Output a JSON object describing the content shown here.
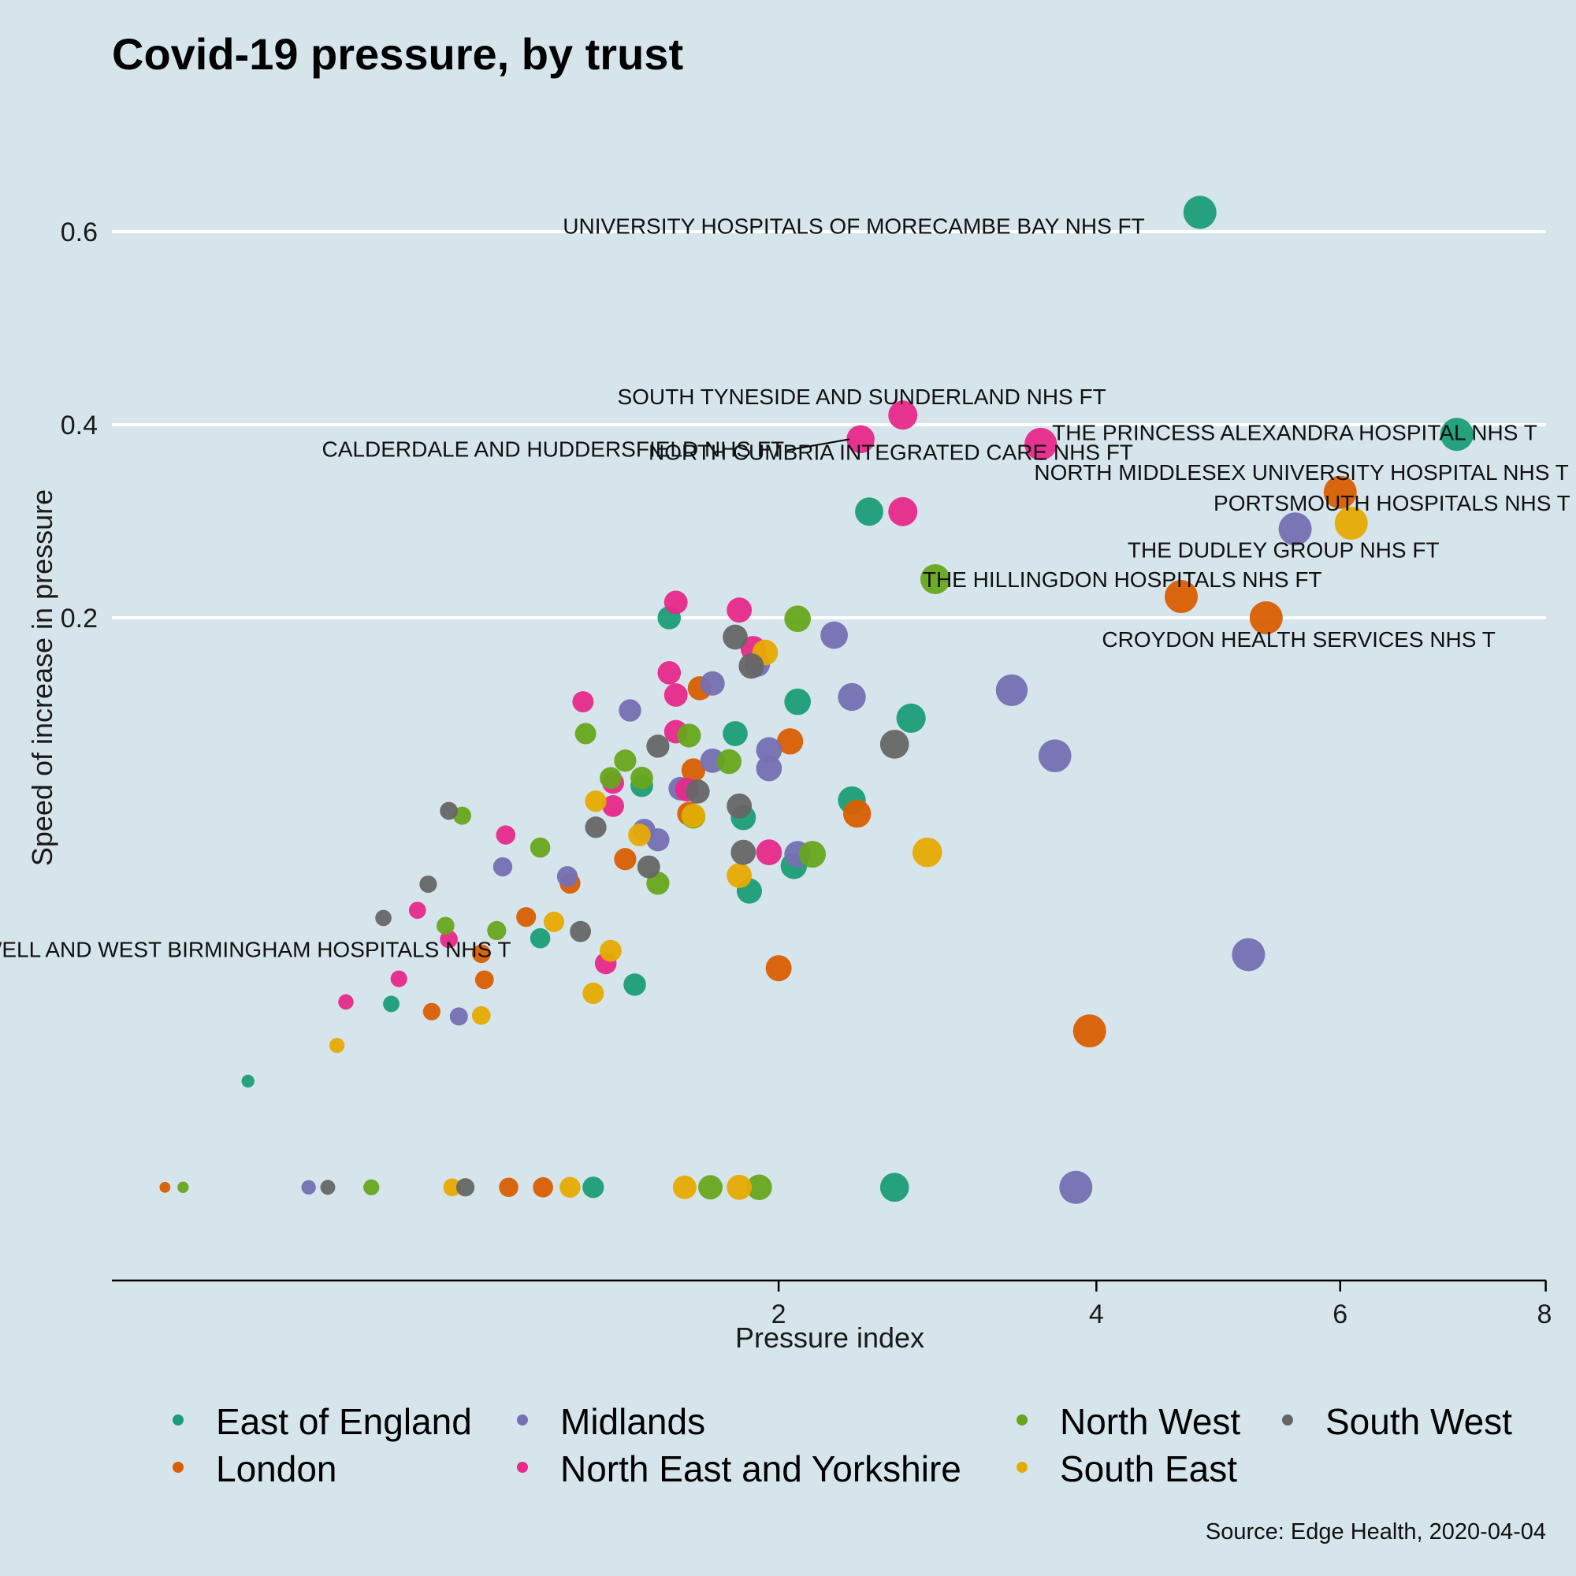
{
  "colors": {
    "background": "#d6e5ec",
    "gridline": "#ffffff",
    "axis": "#000000",
    "East of England": "#1b9e77",
    "London": "#d95f02",
    "Midlands": "#7570b3",
    "North East and Yorkshire": "#e7298a",
    "North West": "#66a61e",
    "South East": "#e6ab02",
    "South West": "#666666"
  },
  "chart_data": {
    "type": "scatter",
    "title": "Covid-19 pressure, by trust",
    "xlabel": "Pressure index",
    "ylabel": "Speed of increase in pressure",
    "caption": "Source: Edge Health, 2020-04-04",
    "x_scale": "sqrt",
    "xlim": [
      0,
      8
    ],
    "ylim": [
      -0.45,
      0.68
    ],
    "x_ticks": [
      2,
      4,
      6,
      8
    ],
    "y_ticks": [
      0.2,
      0.4,
      0.6
    ],
    "grid": "horizontal major lines only",
    "legend_position": "bottom",
    "legend": [
      "East of England",
      "Midlands",
      "North West",
      "South West",
      "London",
      "North East and Yorkshire",
      "South East"
    ],
    "series": [
      {
        "name": "East of England",
        "points": [
          {
            "x": 4.8,
            "y": 0.62,
            "label": "UNIVERSITY HOSPITALS OF MORECAMBE BAY NHS FT"
          },
          {
            "x": 7.1,
            "y": 0.39,
            "label": "THE PRINCESS ALEXANDRA HOSPITAL NHS T"
          },
          {
            "x": 2.5,
            "y": 0.31,
            "label": "NORTH CUMBRIA INTEGRATED CARE NHS FT"
          },
          {
            "x": 1.47,
            "y": 0.2
          },
          {
            "x": 2.1,
            "y": 0.113
          },
          {
            "x": 2.75,
            "y": 0.096
          },
          {
            "x": 1.78,
            "y": 0.08
          },
          {
            "x": 1.35,
            "y": 0.026
          },
          {
            "x": 2.4,
            "y": 0.011
          },
          {
            "x": 1.82,
            "y": -0.007
          },
          {
            "x": 2.08,
            "y": -0.057
          },
          {
            "x": 1.85,
            "y": -0.083
          },
          {
            "x": 0.95,
            "y": -0.132
          },
          {
            "x": 1.32,
            "y": -0.18
          },
          {
            "x": 0.49,
            "y": -0.2
          },
          {
            "x": 0.19,
            "y": -0.28
          },
          {
            "x": 1.15,
            "y": -0.39
          },
          {
            "x": 2.65,
            "y": -0.39
          }
        ]
      },
      {
        "name": "London",
        "points": [
          {
            "x": 6.0,
            "y": 0.33,
            "label": "NORTH MIDDLESEX UNIVERSITY HOSPITAL NHS T"
          },
          {
            "x": 4.65,
            "y": 0.222
          },
          {
            "x": 5.35,
            "y": 0.2,
            "label": "CROYDON HEALTH SERVICES NHS T"
          },
          {
            "x": 1.61,
            "y": 0.127
          },
          {
            "x": 2.06,
            "y": 0.072
          },
          {
            "x": 1.58,
            "y": 0.042
          },
          {
            "x": 1.56,
            "y": -0.003
          },
          {
            "x": 2.43,
            "y": -0.003
          },
          {
            "x": 1.28,
            "y": -0.05
          },
          {
            "x": 1.06,
            "y": -0.075
          },
          {
            "x": 0.9,
            "y": -0.11
          },
          {
            "x": 0.75,
            "y": -0.148
          },
          {
            "x": 0.76,
            "y": -0.175
          },
          {
            "x": 2.0,
            "y": -0.163,
            "label": "SANDWELL AND WEST BIRMINGHAM HOSPITALS NHS T"
          },
          {
            "x": 0.6,
            "y": -0.208
          },
          {
            "x": 3.95,
            "y": -0.228
          },
          {
            "x": 0.08,
            "y": -0.39
          },
          {
            "x": 0.84,
            "y": -0.39
          },
          {
            "x": 0.96,
            "y": -0.39
          }
        ]
      },
      {
        "name": "Midlands",
        "points": [
          {
            "x": 5.6,
            "y": 0.292,
            "label": "THE DUDLEY GROUP NHS FT"
          },
          {
            "x": 2.3,
            "y": 0.182
          },
          {
            "x": 1.89,
            "y": 0.152
          },
          {
            "x": 1.67,
            "y": 0.132
          },
          {
            "x": 3.4,
            "y": 0.125
          },
          {
            "x": 2.4,
            "y": 0.118
          },
          {
            "x": 1.3,
            "y": 0.104
          },
          {
            "x": 1.95,
            "y": 0.063
          },
          {
            "x": 3.7,
            "y": 0.057
          },
          {
            "x": 1.67,
            "y": 0.052
          },
          {
            "x": 1.95,
            "y": 0.044
          },
          {
            "x": 1.52,
            "y": 0.023
          },
          {
            "x": 1.36,
            "y": -0.02
          },
          {
            "x": 1.42,
            "y": -0.03
          },
          {
            "x": 2.1,
            "y": -0.045
          },
          {
            "x": 0.82,
            "y": -0.058
          },
          {
            "x": 1.05,
            "y": -0.068
          },
          {
            "x": 5.2,
            "y": -0.149
          },
          {
            "x": 0.68,
            "y": -0.213
          },
          {
            "x": 0.3,
            "y": -0.39
          },
          {
            "x": 3.85,
            "y": -0.39
          }
        ]
      },
      {
        "name": "North East and Yorkshire",
        "points": [
          {
            "x": 2.7,
            "y": 0.41,
            "label": "SOUTH TYNESIDE AND SUNDERLAND NHS FT"
          },
          {
            "x": 2.45,
            "y": 0.385,
            "label": "CALDERDALE AND HUDDERSFIELD NHS FT"
          },
          {
            "x": 3.6,
            "y": 0.38
          },
          {
            "x": 2.7,
            "y": 0.31
          },
          {
            "x": 1.5,
            "y": 0.216
          },
          {
            "x": 1.8,
            "y": 0.208
          },
          {
            "x": 1.87,
            "y": 0.168
          },
          {
            "x": 1.47,
            "y": 0.143
          },
          {
            "x": 1.5,
            "y": 0.12
          },
          {
            "x": 1.11,
            "y": 0.113
          },
          {
            "x": 1.5,
            "y": 0.082
          },
          {
            "x": 1.23,
            "y": 0.029
          },
          {
            "x": 1.55,
            "y": 0.022
          },
          {
            "x": 1.23,
            "y": 0.005
          },
          {
            "x": 0.83,
            "y": -0.025
          },
          {
            "x": 1.95,
            "y": -0.043
          },
          {
            "x": 0.56,
            "y": -0.103
          },
          {
            "x": 0.65,
            "y": -0.133
          },
          {
            "x": 1.2,
            "y": -0.158
          },
          {
            "x": 0.51,
            "y": -0.174
          },
          {
            "x": 0.38,
            "y": -0.198
          }
        ]
      },
      {
        "name": "North West",
        "points": [
          {
            "x": 2.9,
            "y": 0.24,
            "label": "THE HILLINGDON HOSPITALS NHS FT"
          },
          {
            "x": 2.1,
            "y": 0.199
          },
          {
            "x": 1.56,
            "y": 0.078
          },
          {
            "x": 1.12,
            "y": 0.08
          },
          {
            "x": 1.75,
            "y": 0.051
          },
          {
            "x": 1.28,
            "y": 0.052
          },
          {
            "x": 1.35,
            "y": 0.034
          },
          {
            "x": 1.22,
            "y": 0.034
          },
          {
            "x": 1.58,
            "y": -0.006
          },
          {
            "x": 0.69,
            "y": -0.005
          },
          {
            "x": 0.95,
            "y": -0.038
          },
          {
            "x": 2.18,
            "y": -0.045
          },
          {
            "x": 1.42,
            "y": -0.075
          },
          {
            "x": 0.64,
            "y": -0.119
          },
          {
            "x": 0.8,
            "y": -0.124
          },
          {
            "x": 0.1,
            "y": -0.39
          },
          {
            "x": 0.44,
            "y": -0.39
          },
          {
            "x": 1.66,
            "y": -0.39
          },
          {
            "x": 1.9,
            "y": -0.39
          }
        ]
      },
      {
        "name": "South East",
        "points": [
          {
            "x": 6.1,
            "y": 0.298,
            "label": "PORTSMOUTH HOSPITALS NHS T"
          },
          {
            "x": 1.93,
            "y": 0.164
          },
          {
            "x": 1.16,
            "y": 0.01
          },
          {
            "x": 1.58,
            "y": -0.005
          },
          {
            "x": 1.34,
            "y": -0.025
          },
          {
            "x": 2.85,
            "y": -0.043
          },
          {
            "x": 1.8,
            "y": -0.067
          },
          {
            "x": 1.0,
            "y": -0.115
          },
          {
            "x": 1.22,
            "y": -0.145
          },
          {
            "x": 1.15,
            "y": -0.189
          },
          {
            "x": 0.75,
            "y": -0.212
          },
          {
            "x": 0.36,
            "y": -0.243
          },
          {
            "x": 0.66,
            "y": -0.39
          },
          {
            "x": 1.06,
            "y": -0.39
          },
          {
            "x": 1.54,
            "y": -0.39
          },
          {
            "x": 1.8,
            "y": -0.39
          }
        ]
      },
      {
        "name": "South West",
        "points": [
          {
            "x": 1.78,
            "y": 0.18
          },
          {
            "x": 1.86,
            "y": 0.15
          },
          {
            "x": 2.65,
            "y": 0.069
          },
          {
            "x": 1.42,
            "y": 0.067
          },
          {
            "x": 1.6,
            "y": 0.02
          },
          {
            "x": 1.8,
            "y": 0.005
          },
          {
            "x": 0.65,
            "y": 0.0
          },
          {
            "x": 1.16,
            "y": -0.017
          },
          {
            "x": 1.82,
            "y": -0.043
          },
          {
            "x": 1.38,
            "y": -0.058
          },
          {
            "x": 0.59,
            "y": -0.076
          },
          {
            "x": 0.47,
            "y": -0.111
          },
          {
            "x": 1.1,
            "y": -0.125
          },
          {
            "x": 0.34,
            "y": -0.39
          },
          {
            "x": 0.7,
            "y": -0.39
          }
        ]
      }
    ]
  }
}
